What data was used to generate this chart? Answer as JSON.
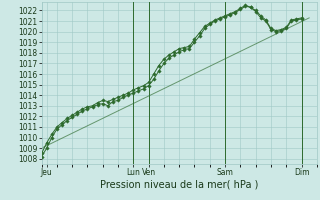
{
  "background_color": "#cde8e5",
  "grid_color": "#a0c8c5",
  "line_color": "#2d6a2d",
  "ylabel_values": [
    1008,
    1009,
    1010,
    1011,
    1012,
    1013,
    1014,
    1015,
    1016,
    1017,
    1018,
    1019,
    1020,
    1021,
    1022
  ],
  "ylim": [
    1007.5,
    1022.8
  ],
  "xlabel": "Pression niveau de la mer( hPa )",
  "xlabel_fontsize": 7,
  "tick_labels": [
    "Jeu",
    "Lun",
    "Ven",
    "Sam",
    "Dim"
  ],
  "tick_positions": [
    4,
    72,
    84,
    144,
    204
  ],
  "xlim": [
    0,
    216
  ],
  "vlines": [
    72,
    84,
    144,
    204
  ],
  "series1_x": [
    0,
    4,
    8,
    12,
    16,
    20,
    24,
    28,
    32,
    36,
    40,
    44,
    48,
    52,
    56,
    60,
    64,
    68,
    72,
    76,
    80,
    84,
    88,
    92,
    96,
    100,
    104,
    108,
    112,
    116,
    120,
    124,
    128,
    132,
    136,
    140,
    144,
    148,
    152,
    156,
    160,
    164,
    168,
    172,
    176,
    180,
    184,
    188,
    192,
    196,
    200,
    204
  ],
  "series1_y": [
    1008.2,
    1009.0,
    1010.0,
    1010.8,
    1011.2,
    1011.6,
    1011.9,
    1012.2,
    1012.5,
    1012.7,
    1012.9,
    1013.1,
    1013.2,
    1013.0,
    1013.4,
    1013.5,
    1013.8,
    1014.0,
    1014.2,
    1014.4,
    1014.6,
    1014.9,
    1015.5,
    1016.3,
    1017.0,
    1017.5,
    1017.8,
    1018.1,
    1018.3,
    1018.4,
    1019.0,
    1019.6,
    1020.3,
    1020.7,
    1021.0,
    1021.2,
    1021.4,
    1021.6,
    1021.8,
    1022.1,
    1022.4,
    1022.3,
    1021.9,
    1021.3,
    1021.0,
    1020.2,
    1020.0,
    1020.1,
    1020.3,
    1021.0,
    1021.1,
    1021.2
  ],
  "series2_x": [
    0,
    4,
    8,
    12,
    16,
    20,
    24,
    28,
    32,
    36,
    40,
    44,
    48,
    52,
    56,
    60,
    64,
    68,
    72,
    76,
    80,
    84,
    88,
    92,
    96,
    100,
    104,
    108,
    112,
    116,
    120,
    124,
    128,
    132,
    136,
    140,
    144,
    148,
    152,
    156,
    160,
    164,
    168,
    172,
    176,
    180,
    184,
    188,
    192,
    196,
    200,
    204
  ],
  "series2_y": [
    1008.5,
    1009.5,
    1010.3,
    1011.0,
    1011.4,
    1011.8,
    1012.1,
    1012.4,
    1012.7,
    1012.9,
    1013.0,
    1013.3,
    1013.5,
    1013.4,
    1013.6,
    1013.8,
    1014.0,
    1014.2,
    1014.5,
    1014.7,
    1014.9,
    1015.2,
    1016.0,
    1016.8,
    1017.4,
    1017.8,
    1018.1,
    1018.4,
    1018.5,
    1018.6,
    1019.3,
    1019.9,
    1020.5,
    1020.8,
    1021.1,
    1021.3,
    1021.5,
    1021.7,
    1021.9,
    1022.2,
    1022.5,
    1022.3,
    1022.0,
    1021.5,
    1021.1,
    1020.3,
    1020.1,
    1020.2,
    1020.4,
    1021.1,
    1021.2,
    1021.3
  ],
  "trend_x": [
    0,
    210
  ],
  "trend_y": [
    1009.0,
    1021.3
  ],
  "marker": "D",
  "markersize": 1.8,
  "linewidth": 0.7,
  "tick_fontsize": 5.5
}
